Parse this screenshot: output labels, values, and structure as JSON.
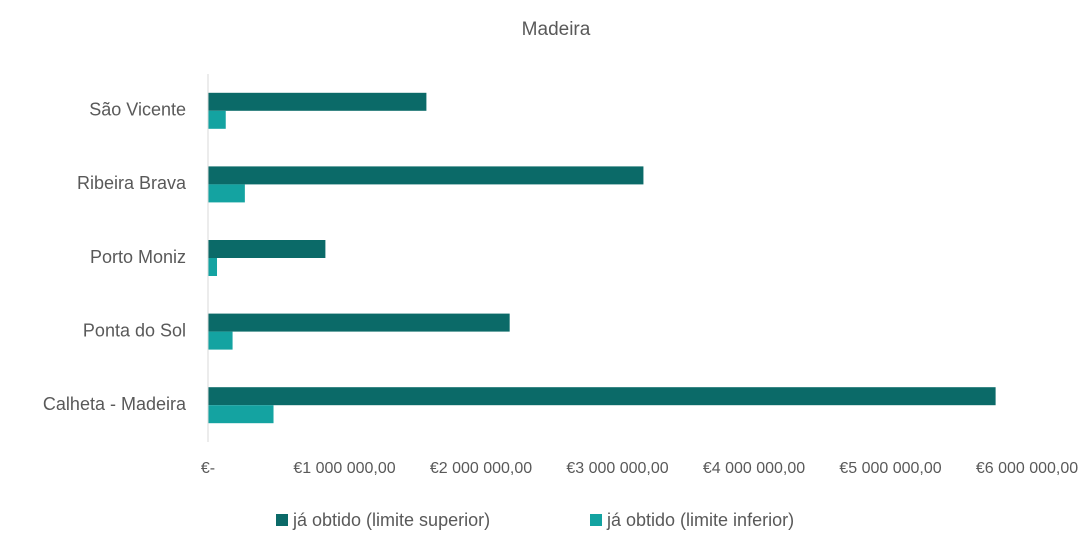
{
  "chart_data": {
    "type": "bar",
    "orientation": "horizontal",
    "title": "Madeira",
    "categories": [
      "São Vicente",
      "Ribeira Brava",
      "Porto Moniz",
      "Ponta do Sol",
      "Calheta - Madeira"
    ],
    "series": [
      {
        "name": "já obtido (limite superior)",
        "color": "#0b6a68",
        "values": [
          1600000,
          3190000,
          860000,
          2210000,
          5770000
        ]
      },
      {
        "name": "já obtido (limite inferior)",
        "color": "#14a3a1",
        "values": [
          130000,
          270000,
          66000,
          180000,
          480000
        ]
      }
    ],
    "xlim": [
      0,
      6000000
    ],
    "xticks": [
      {
        "value": 0,
        "label": "€-"
      },
      {
        "value": 1000000,
        "label": "€1 000 000,00"
      },
      {
        "value": 2000000,
        "label": "€2 000 000,00"
      },
      {
        "value": 3000000,
        "label": "€3 000 000,00"
      },
      {
        "value": 4000000,
        "label": "€4 000 000,00"
      },
      {
        "value": 5000000,
        "label": "€5 000 000,00"
      },
      {
        "value": 6000000,
        "label": "€6 000 000,00"
      }
    ],
    "grid": false,
    "legend": "bottom"
  }
}
